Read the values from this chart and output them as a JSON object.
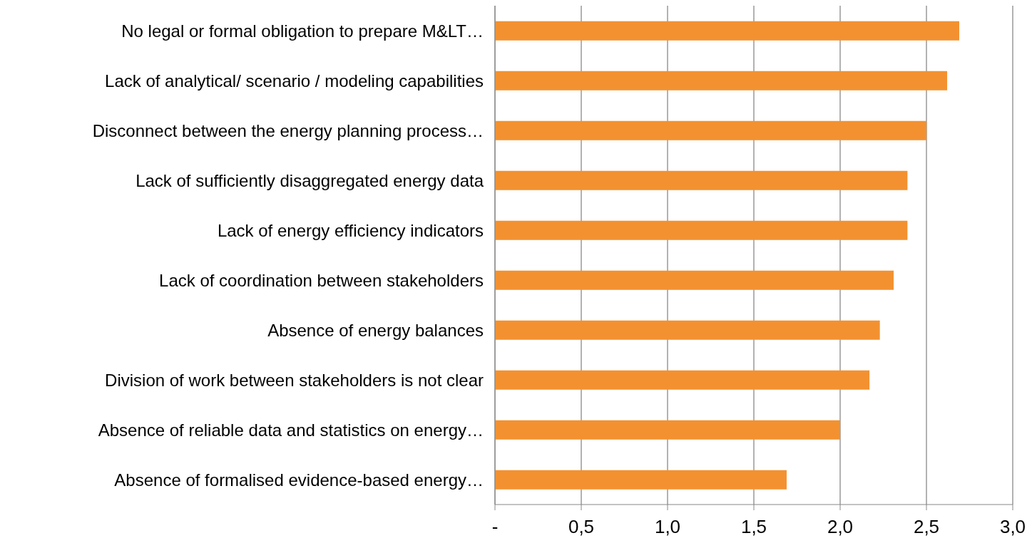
{
  "chart_data": {
    "type": "bar",
    "orientation": "horizontal",
    "categories": [
      "No legal or formal obligation to prepare M&LT…",
      "Lack of analytical/ scenario / modeling capabilities",
      "Disconnect between the energy planning process…",
      "Lack of sufficiently disaggregated energy data",
      "Lack of energy efficiency indicators",
      "Lack of coordination between stakeholders",
      "Absence of energy balances",
      "Division of work between stakeholders is not clear",
      "Absence of reliable data and statistics on energy…",
      "Absence of formalised evidence-based energy…"
    ],
    "values": [
      2.69,
      2.62,
      2.5,
      2.39,
      2.39,
      2.31,
      2.23,
      2.17,
      2.0,
      1.69
    ],
    "color": "#f39130",
    "xlim": [
      0,
      3
    ],
    "xticks": [
      {
        "value": 0,
        "label": "-"
      },
      {
        "value": 0.5,
        "label": "0,5"
      },
      {
        "value": 1,
        "label": "1,0"
      },
      {
        "value": 1.5,
        "label": "1,5"
      },
      {
        "value": 2,
        "label": "2,0"
      },
      {
        "value": 2.5,
        "label": "2,5"
      },
      {
        "value": 3,
        "label": "3,0"
      }
    ],
    "grid": "x"
  }
}
